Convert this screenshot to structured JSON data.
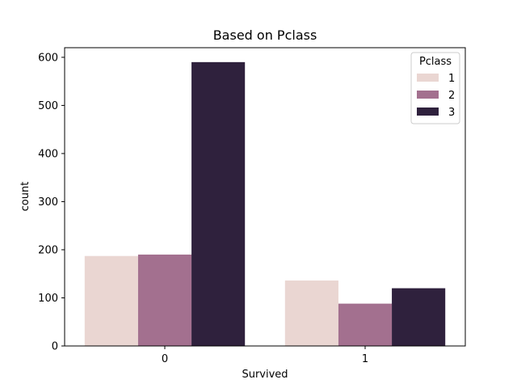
{
  "chart_data": {
    "type": "bar",
    "title": "Based on Pclass",
    "xlabel": "Survived",
    "ylabel": "count",
    "categories": [
      "0",
      "1"
    ],
    "ylim": [
      0,
      620
    ],
    "yticks": [
      0,
      100,
      200,
      300,
      400,
      500,
      600
    ],
    "grid": false,
    "legend": {
      "title": "Pclass",
      "placement": "top-right"
    },
    "series": [
      {
        "name": "1",
        "color": "#ead6d2",
        "values": [
          187,
          136
        ]
      },
      {
        "name": "2",
        "color": "#a3708f",
        "values": [
          190,
          88
        ]
      },
      {
        "name": "3",
        "color": "#2f213d",
        "values": [
          590,
          120
        ]
      }
    ]
  }
}
